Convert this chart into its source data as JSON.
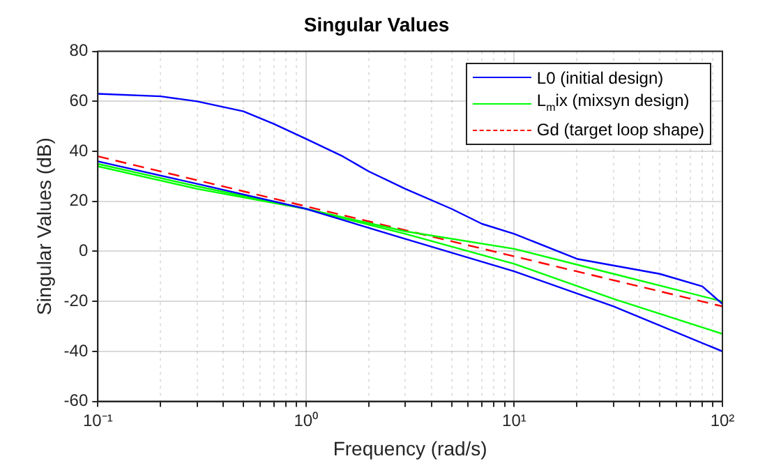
{
  "chart_data": {
    "type": "line",
    "title": "Singular Values",
    "xlabel": "Frequency (rad/s)",
    "ylabel": "Singular Values (dB)",
    "log": "x",
    "grid": true,
    "legend": "top right",
    "xlim": [
      0.1,
      100
    ],
    "xticks": [
      {
        "value": 0.1,
        "label": "10⁻¹"
      },
      {
        "value": 0.2,
        "label": null
      },
      {
        "value": 0.3,
        "label": null
      },
      {
        "value": 0.4,
        "label": null
      },
      {
        "value": 0.5,
        "label": null
      },
      {
        "value": 0.6,
        "label": null
      },
      {
        "value": 0.7,
        "label": null
      },
      {
        "value": 0.8,
        "label": null
      },
      {
        "value": 0.9,
        "label": null
      },
      {
        "value": 1,
        "label": "10⁰"
      },
      {
        "value": 2,
        "label": null
      },
      {
        "value": 3,
        "label": null
      },
      {
        "value": 4,
        "label": null
      },
      {
        "value": 5,
        "label": null
      },
      {
        "value": 6,
        "label": null
      },
      {
        "value": 7,
        "label": null
      },
      {
        "value": 8,
        "label": null
      },
      {
        "value": 9,
        "label": null
      },
      {
        "value": 10,
        "label": "10¹"
      },
      {
        "value": 20,
        "label": null
      },
      {
        "value": 30,
        "label": null
      },
      {
        "value": 40,
        "label": null
      },
      {
        "value": 50,
        "label": null
      },
      {
        "value": 60,
        "label": null
      },
      {
        "value": 70,
        "label": null
      },
      {
        "value": 80,
        "label": null
      },
      {
        "value": 90,
        "label": null
      },
      {
        "value": 100,
        "label": "10²"
      }
    ],
    "ylim": [
      -60,
      80
    ],
    "yticks": [
      -60,
      -40,
      -20,
      0,
      20,
      40,
      60,
      80
    ],
    "series": [
      {
        "name": "L0 (initial design)",
        "color": "#0000ff",
        "line_style": "solid",
        "x": [
          0.1,
          0.2,
          0.3,
          0.5,
          0.7,
          1,
          1.5,
          2,
          3,
          5,
          7,
          10,
          20,
          50,
          80,
          100
        ],
        "values": [
          63,
          62,
          60,
          56,
          51,
          45,
          38,
          32,
          25,
          17,
          11,
          7,
          -3,
          -9,
          -14,
          -21
        ]
      },
      {
        "color": "#0000ff",
        "line_style": "solid",
        "x": [
          0.1,
          0.3,
          1,
          3,
          10,
          30,
          100
        ],
        "values": [
          36,
          27,
          17,
          5,
          -8,
          -22,
          -40
        ]
      },
      {
        "name": "L$_{m}$ix (mixsyn design)",
        "color": "#00ff00",
        "line_style": "solid",
        "x": [
          0.1,
          0.3,
          1,
          3,
          10,
          30,
          100
        ],
        "values": [
          35,
          26,
          17,
          8,
          1,
          -9,
          -20
        ]
      },
      {
        "color": "#00ff00",
        "line_style": "solid",
        "x": [
          0.1,
          0.3,
          1,
          3,
          10,
          30,
          100
        ],
        "values": [
          34,
          25,
          17,
          7,
          -5,
          -19,
          -33
        ]
      },
      {
        "name": "Gd (target loop shape)",
        "color": "#ff0000",
        "line_style": "dashed",
        "x": [
          0.1,
          1,
          10,
          100
        ],
        "values": [
          38,
          18,
          -2,
          -22
        ]
      }
    ]
  }
}
